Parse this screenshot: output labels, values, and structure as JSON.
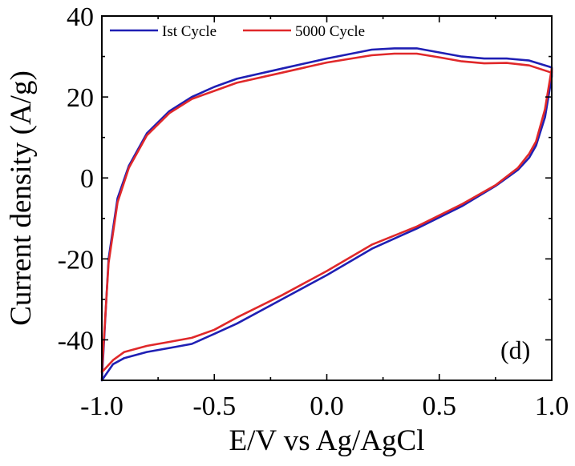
{
  "chart_data": {
    "type": "line",
    "xlabel": "E/V vs Ag/AgCl",
    "ylabel": "Current density (A/g)",
    "xlim": [
      -1.0,
      1.0
    ],
    "ylim": [
      -50,
      40
    ],
    "x_ticks": [
      -1.0,
      -0.5,
      0.0,
      0.5,
      1.0
    ],
    "x_tick_labels": [
      "-1.0",
      "-0.5",
      "0.0",
      "0.5",
      "1.0"
    ],
    "y_ticks": [
      -40,
      -20,
      0,
      20,
      40
    ],
    "y_tick_labels": [
      "-40",
      "-20",
      "0",
      "20",
      "40"
    ],
    "annotation": "(d)",
    "legend_position": "top-left",
    "grid": false,
    "series": [
      {
        "name": "Ist Cycle",
        "color": "#1f1fb4",
        "points": [
          [
            -1.0,
            -50
          ],
          [
            -0.97,
            -20
          ],
          [
            -0.93,
            -5
          ],
          [
            -0.88,
            3
          ],
          [
            -0.8,
            11
          ],
          [
            -0.7,
            16.5
          ],
          [
            -0.6,
            20
          ],
          [
            -0.5,
            22.5
          ],
          [
            -0.4,
            24.5
          ],
          [
            -0.2,
            27
          ],
          [
            0.0,
            29.5
          ],
          [
            0.2,
            31.7
          ],
          [
            0.3,
            32
          ],
          [
            0.4,
            32
          ],
          [
            0.5,
            31
          ],
          [
            0.6,
            30
          ],
          [
            0.7,
            29.5
          ],
          [
            0.8,
            29.5
          ],
          [
            0.9,
            29
          ],
          [
            1.0,
            27.3
          ],
          [
            1.0,
            25
          ],
          [
            0.97,
            15
          ],
          [
            0.93,
            8
          ],
          [
            0.9,
            5
          ],
          [
            0.85,
            2
          ],
          [
            0.75,
            -2
          ],
          [
            0.6,
            -7
          ],
          [
            0.4,
            -12.5
          ],
          [
            0.2,
            -17.5
          ],
          [
            0.0,
            -24
          ],
          [
            -0.2,
            -30
          ],
          [
            -0.4,
            -36
          ],
          [
            -0.5,
            -38.5
          ],
          [
            -0.6,
            -41
          ],
          [
            -0.7,
            -42
          ],
          [
            -0.8,
            -43
          ],
          [
            -0.9,
            -44.5
          ],
          [
            -0.95,
            -46
          ],
          [
            -1.0,
            -50
          ]
        ]
      },
      {
        "name": "5000 Cycle",
        "color": "#e0282a",
        "points": [
          [
            -1.0,
            -48
          ],
          [
            -0.97,
            -21
          ],
          [
            -0.93,
            -6
          ],
          [
            -0.88,
            2.5
          ],
          [
            -0.8,
            10.5
          ],
          [
            -0.7,
            16
          ],
          [
            -0.6,
            19.5
          ],
          [
            -0.5,
            21.5
          ],
          [
            -0.4,
            23.5
          ],
          [
            -0.2,
            26
          ],
          [
            0.0,
            28.5
          ],
          [
            0.2,
            30.3
          ],
          [
            0.3,
            30.7
          ],
          [
            0.4,
            30.7
          ],
          [
            0.5,
            29.8
          ],
          [
            0.6,
            28.8
          ],
          [
            0.7,
            28.3
          ],
          [
            0.8,
            28.4
          ],
          [
            0.9,
            27.8
          ],
          [
            1.0,
            26
          ],
          [
            1.0,
            27
          ],
          [
            0.97,
            17
          ],
          [
            0.93,
            9
          ],
          [
            0.9,
            6
          ],
          [
            0.85,
            2.5
          ],
          [
            0.75,
            -1.8
          ],
          [
            0.6,
            -6.5
          ],
          [
            0.4,
            -12
          ],
          [
            0.2,
            -16.5
          ],
          [
            0.0,
            -23
          ],
          [
            -0.2,
            -29
          ],
          [
            -0.4,
            -34.5
          ],
          [
            -0.5,
            -37.5
          ],
          [
            -0.6,
            -39.5
          ],
          [
            -0.7,
            -40.5
          ],
          [
            -0.8,
            -41.5
          ],
          [
            -0.9,
            -43
          ],
          [
            -0.95,
            -45
          ],
          [
            -1.0,
            -48
          ]
        ]
      }
    ]
  }
}
